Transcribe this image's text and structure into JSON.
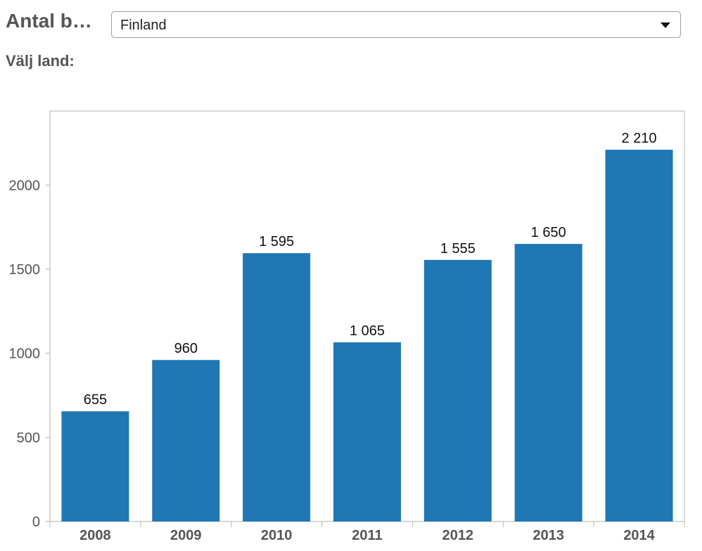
{
  "header": {
    "title": "Antal b…",
    "country_label": "Välj land:",
    "country_select": {
      "selected": "Finland"
    }
  },
  "colors": {
    "bar": "#1f77b4",
    "axis_text": "#555555",
    "frame": "#cccccc"
  },
  "icons": {
    "dropdown": "caret-down-icon"
  },
  "chart_data": {
    "type": "bar",
    "categories": [
      "2008",
      "2009",
      "2010",
      "2011",
      "2012",
      "2013",
      "2014"
    ],
    "values": [
      655,
      960,
      1595,
      1065,
      1555,
      1650,
      2210
    ],
    "value_labels": [
      "655",
      "960",
      "1 595",
      "1 065",
      "1 555",
      "1 650",
      "2 210"
    ],
    "yticks": [
      0,
      500,
      1000,
      1500,
      2000
    ],
    "ylim": [
      0,
      2440
    ],
    "grid": false,
    "legend": "none"
  }
}
